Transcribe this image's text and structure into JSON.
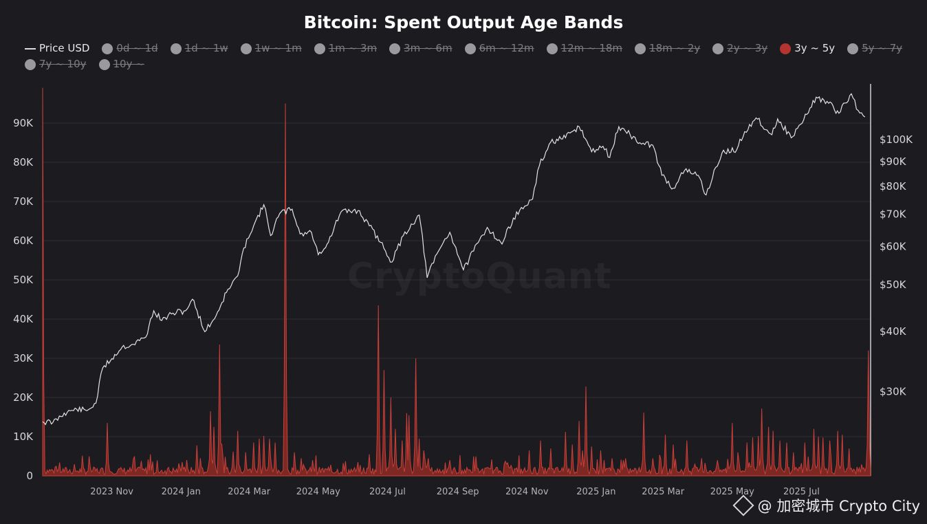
{
  "chart_data": {
    "type": "area",
    "title": "Bitcoin: Spent Output Age Bands",
    "legend": [
      {
        "label": "Price USD",
        "active": true,
        "kind": "line",
        "color": "#dcdcdc"
      },
      {
        "label": "0d ~ 1d",
        "active": false,
        "color": "#9a9a9e"
      },
      {
        "label": "1d ~ 1w",
        "active": false,
        "color": "#9a9a9e"
      },
      {
        "label": "1w ~ 1m",
        "active": false,
        "color": "#9a9a9e"
      },
      {
        "label": "1m ~ 3m",
        "active": false,
        "color": "#9a9a9e"
      },
      {
        "label": "3m ~ 6m",
        "active": false,
        "color": "#9a9a9e"
      },
      {
        "label": "6m ~ 12m",
        "active": false,
        "color": "#9a9a9e"
      },
      {
        "label": "12m ~ 18m",
        "active": false,
        "color": "#9a9a9e"
      },
      {
        "label": "18m ~ 2y",
        "active": false,
        "color": "#9a9a9e"
      },
      {
        "label": "2y ~ 3y",
        "active": false,
        "color": "#9a9a9e"
      },
      {
        "label": "3y ~ 5y",
        "active": true,
        "color": "#b5342f"
      },
      {
        "label": "5y ~ 7y",
        "active": false,
        "color": "#9a9a9e"
      },
      {
        "label": "7y ~ 10y",
        "active": false,
        "color": "#9a9a9e"
      },
      {
        "label": "10y ~",
        "active": false,
        "color": "#9a9a9e"
      }
    ],
    "x_start": "2023-09-01",
    "x_end": "2025-08-31",
    "x_ticks": [
      "2023 Nov",
      "2024 Jan",
      "2024 Mar",
      "2024 May",
      "2024 Jul",
      "2024 Sep",
      "2024 Nov",
      "2025 Jan",
      "2025 Mar",
      "2025 May",
      "2025 Jul"
    ],
    "y_left": {
      "min": 0,
      "max": 100000,
      "ticks": [
        "0",
        "10K",
        "20K",
        "30K",
        "40K",
        "50K",
        "60K",
        "70K",
        "80K",
        "90K"
      ],
      "tick_values": [
        0,
        10000,
        20000,
        30000,
        40000,
        50000,
        60000,
        70000,
        80000,
        90000
      ]
    },
    "y_right": {
      "scale": "log",
      "min": 20000,
      "max": 130000,
      "ticks": [
        "$30K",
        "$40K",
        "$50K",
        "$60K",
        "$70K",
        "$80K",
        "$90K",
        "$100K"
      ],
      "tick_values": [
        30000,
        40000,
        50000,
        60000,
        70000,
        80000,
        90000,
        100000
      ]
    },
    "series": [
      {
        "name": "Price USD",
        "axis": "right",
        "color": "#dcdcdc",
        "points": [
          [
            "2023-09-01",
            25900
          ],
          [
            "2023-09-10",
            25800
          ],
          [
            "2023-09-20",
            27000
          ],
          [
            "2023-10-01",
            27500
          ],
          [
            "2023-10-10",
            27300
          ],
          [
            "2023-10-18",
            28300
          ],
          [
            "2023-10-24",
            33500
          ],
          [
            "2023-11-01",
            35000
          ],
          [
            "2023-11-10",
            37000
          ],
          [
            "2023-11-20",
            37500
          ],
          [
            "2023-12-01",
            38800
          ],
          [
            "2023-12-08",
            44000
          ],
          [
            "2023-12-15",
            42000
          ],
          [
            "2023-12-25",
            43500
          ],
          [
            "2024-01-05",
            44000
          ],
          [
            "2024-01-11",
            46500
          ],
          [
            "2024-01-22",
            39800
          ],
          [
            "2024-02-01",
            43000
          ],
          [
            "2024-02-10",
            48000
          ],
          [
            "2024-02-20",
            52000
          ],
          [
            "2024-02-28",
            62000
          ],
          [
            "2024-03-05",
            66000
          ],
          [
            "2024-03-14",
            73000
          ],
          [
            "2024-03-20",
            63000
          ],
          [
            "2024-03-28",
            70000
          ],
          [
            "2024-04-08",
            71500
          ],
          [
            "2024-04-15",
            63500
          ],
          [
            "2024-04-25",
            64000
          ],
          [
            "2024-05-01",
            57500
          ],
          [
            "2024-05-10",
            61000
          ],
          [
            "2024-05-21",
            70500
          ],
          [
            "2024-06-05",
            71000
          ],
          [
            "2024-06-15",
            66000
          ],
          [
            "2024-06-25",
            61000
          ],
          [
            "2024-07-05",
            55500
          ],
          [
            "2024-07-15",
            63000
          ],
          [
            "2024-07-29",
            69500
          ],
          [
            "2024-08-05",
            51500
          ],
          [
            "2024-08-15",
            58500
          ],
          [
            "2024-08-25",
            64000
          ],
          [
            "2024-09-06",
            53500
          ],
          [
            "2024-09-15",
            58500
          ],
          [
            "2024-09-27",
            65500
          ],
          [
            "2024-10-10",
            60500
          ],
          [
            "2024-10-20",
            68500
          ],
          [
            "2024-10-30",
            72500
          ],
          [
            "2024-11-06",
            75000
          ],
          [
            "2024-11-12",
            88000
          ],
          [
            "2024-11-22",
            98500
          ],
          [
            "2024-12-05",
            100500
          ],
          [
            "2024-12-17",
            106000
          ],
          [
            "2024-12-28",
            94000
          ],
          [
            "2025-01-07",
            96500
          ],
          [
            "2025-01-13",
            91500
          ],
          [
            "2025-01-21",
            106000
          ],
          [
            "2025-01-31",
            102000
          ],
          [
            "2025-02-10",
            97500
          ],
          [
            "2025-02-20",
            97000
          ],
          [
            "2025-02-28",
            84000
          ],
          [
            "2025-03-10",
            79000
          ],
          [
            "2025-03-20",
            86000
          ],
          [
            "2025-04-01",
            84000
          ],
          [
            "2025-04-08",
            76500
          ],
          [
            "2025-04-22",
            93500
          ],
          [
            "2025-05-05",
            95000
          ],
          [
            "2025-05-12",
            103500
          ],
          [
            "2025-05-22",
            110500
          ],
          [
            "2025-06-05",
            102000
          ],
          [
            "2025-06-10",
            110000
          ],
          [
            "2025-06-22",
            100500
          ],
          [
            "2025-07-03",
            109500
          ],
          [
            "2025-07-14",
            122000
          ],
          [
            "2025-07-25",
            118500
          ],
          [
            "2025-08-03",
            113000
          ],
          [
            "2025-08-14",
            124000
          ],
          [
            "2025-08-20",
            114500
          ],
          [
            "2025-08-26",
            111000
          ]
        ]
      },
      {
        "name": "3y ~ 5y",
        "axis": "left",
        "color": "#b5342f",
        "baseline": 1200,
        "spikes": [
          [
            "2023-09-01",
            99000
          ],
          [
            "2023-10-12",
            5000
          ],
          [
            "2023-10-28",
            13500
          ],
          [
            "2023-12-05",
            5500
          ],
          [
            "2024-01-02",
            3500
          ],
          [
            "2024-01-15",
            7800
          ],
          [
            "2024-01-27",
            16500
          ],
          [
            "2024-01-30",
            12500
          ],
          [
            "2024-02-04",
            33500
          ],
          [
            "2024-02-06",
            8000
          ],
          [
            "2024-02-16",
            6200
          ],
          [
            "2024-02-20",
            11500
          ],
          [
            "2024-02-27",
            6000
          ],
          [
            "2024-03-05",
            8500
          ],
          [
            "2024-03-10",
            9500
          ],
          [
            "2024-03-14",
            10200
          ],
          [
            "2024-03-19",
            9500
          ],
          [
            "2024-03-24",
            8500
          ],
          [
            "2024-04-02",
            95000
          ],
          [
            "2024-04-10",
            6000
          ],
          [
            "2024-04-16",
            4500
          ],
          [
            "2024-04-26",
            4000
          ],
          [
            "2024-05-12",
            2800
          ],
          [
            "2024-06-05",
            3500
          ],
          [
            "2024-06-15",
            5500
          ],
          [
            "2024-06-23",
            43500
          ],
          [
            "2024-06-28",
            27000
          ],
          [
            "2024-07-04",
            20000
          ],
          [
            "2024-07-08",
            12000
          ],
          [
            "2024-07-14",
            9000
          ],
          [
            "2024-07-18",
            16000
          ],
          [
            "2024-07-20",
            15500
          ],
          [
            "2024-07-26",
            30000
          ],
          [
            "2024-07-29",
            9500
          ],
          [
            "2024-08-02",
            6500
          ],
          [
            "2024-08-06",
            4500
          ],
          [
            "2024-08-25",
            4000
          ],
          [
            "2024-09-15",
            3200
          ],
          [
            "2024-10-14",
            3000
          ],
          [
            "2024-11-03",
            6500
          ],
          [
            "2024-11-13",
            9000
          ],
          [
            "2024-11-22",
            7000
          ],
          [
            "2024-12-05",
            11200
          ],
          [
            "2024-12-11",
            8000
          ],
          [
            "2024-12-17",
            14000
          ],
          [
            "2024-12-20",
            6500
          ],
          [
            "2024-12-23",
            22800
          ],
          [
            "2024-12-28",
            7500
          ],
          [
            "2025-01-05",
            6500
          ],
          [
            "2025-01-15",
            4500
          ],
          [
            "2025-01-25",
            4000
          ],
          [
            "2025-02-12",
            16200
          ],
          [
            "2025-02-20",
            4500
          ],
          [
            "2025-03-03",
            10500
          ],
          [
            "2025-03-10",
            8000
          ],
          [
            "2025-03-22",
            9000
          ],
          [
            "2025-04-04",
            4500
          ],
          [
            "2025-04-18",
            4000
          ],
          [
            "2025-05-01",
            13500
          ],
          [
            "2025-05-06",
            6000
          ],
          [
            "2025-05-14",
            8500
          ],
          [
            "2025-05-19",
            9800
          ],
          [
            "2025-05-24",
            10200
          ],
          [
            "2025-05-27",
            17200
          ],
          [
            "2025-06-02",
            12500
          ],
          [
            "2025-06-06",
            11500
          ],
          [
            "2025-06-12",
            9000
          ],
          [
            "2025-06-18",
            8500
          ],
          [
            "2025-06-24",
            6000
          ],
          [
            "2025-07-04",
            8500
          ],
          [
            "2025-07-12",
            12000
          ],
          [
            "2025-07-16",
            10000
          ],
          [
            "2025-07-20",
            9800
          ],
          [
            "2025-07-26",
            9000
          ],
          [
            "2025-08-02",
            11500
          ],
          [
            "2025-08-06",
            10500
          ],
          [
            "2025-08-12",
            7000
          ],
          [
            "2025-08-29",
            32000
          ]
        ]
      }
    ],
    "grid": true,
    "legend_position": "top-left"
  },
  "watermark": "CryptoQuant",
  "credit": "@ 加密城市 Crypto City"
}
